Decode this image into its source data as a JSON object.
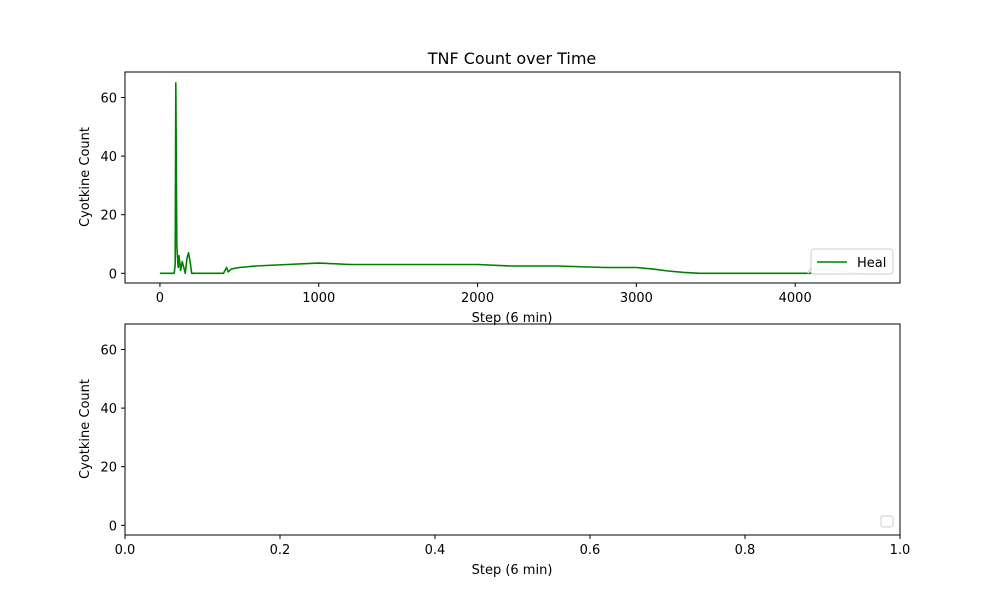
{
  "chart_data": [
    {
      "type": "line",
      "title": "TNF Count over Time",
      "xlabel": "Step (6 min)",
      "ylabel": "Cyotkine Count",
      "xlim": [
        -220,
        4660
      ],
      "ylim": [
        -3.3,
        68.7
      ],
      "xticks": [
        0,
        1000,
        2000,
        3000,
        4000
      ],
      "yticks": [
        0,
        20,
        40,
        60
      ],
      "grid": false,
      "legend": {
        "position": "lower right",
        "entries": [
          "Heal"
        ]
      },
      "series": [
        {
          "name": "Heal",
          "color": "#008000",
          "x": [
            0,
            90,
            96,
            100,
            103,
            106,
            110,
            115,
            120,
            130,
            140,
            150,
            160,
            170,
            180,
            190,
            200,
            220,
            300,
            400,
            420,
            430,
            450,
            500,
            600,
            800,
            1000,
            1200,
            1500,
            1800,
            2000,
            2200,
            2500,
            2800,
            3000,
            3100,
            3200,
            3300,
            3400,
            3600,
            3800,
            4000,
            4100
          ],
          "y": [
            0,
            0,
            3,
            65,
            40,
            10,
            6,
            2,
            6,
            1,
            4,
            2,
            0,
            5,
            7,
            4,
            0,
            0,
            0,
            0,
            2,
            0.5,
            1.5,
            2,
            2.5,
            3,
            3.5,
            3,
            3,
            3,
            3,
            2.5,
            2.5,
            2,
            2,
            1.5,
            0.8,
            0.3,
            0,
            0,
            0,
            0,
            0
          ]
        },
        {
          "name": "",
          "color": "#c8e6c8",
          "x": [
            4080,
            4100,
            4120,
            4150,
            4200,
            4250,
            4300,
            4350,
            4400,
            4420
          ],
          "y": [
            0,
            2,
            1.5,
            1,
            1.2,
            0.8,
            0.6,
            0.3,
            0.1,
            0
          ]
        }
      ]
    },
    {
      "type": "line",
      "title": "",
      "xlabel": "Step (6 min)",
      "ylabel": "Cyotkine Count",
      "xlim": [
        0,
        1
      ],
      "ylim": [
        -3.3,
        68.7
      ],
      "xticks": [
        0.0,
        0.2,
        0.4,
        0.6,
        0.8,
        1.0
      ],
      "xticklabels": [
        "0.0",
        "0.2",
        "0.4",
        "0.6",
        "0.8",
        "1.0"
      ],
      "yticks": [
        0,
        20,
        40,
        60
      ],
      "grid": false,
      "legend": {
        "position": "lower right",
        "entries": []
      },
      "series": []
    }
  ]
}
